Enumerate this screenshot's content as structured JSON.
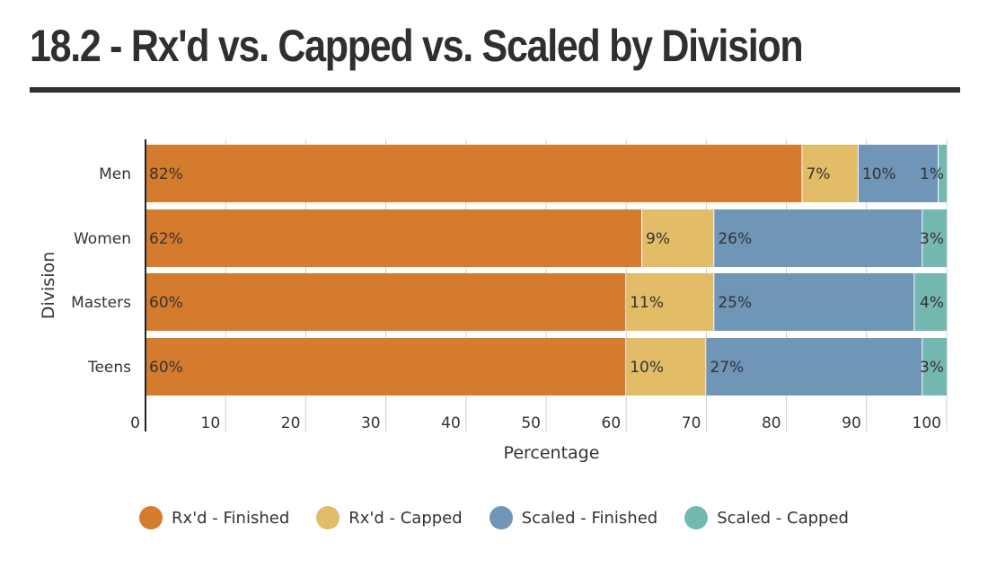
{
  "title": "18.2 - Rx'd vs. Capped vs. Scaled by Division",
  "chart_data": {
    "type": "bar",
    "orientation": "horizontal",
    "stacked": true,
    "title": "18.2 - Rx'd vs. Capped vs. Scaled by Division",
    "xlabel": "Percentage",
    "ylabel": "Division",
    "xlim": [
      0,
      100
    ],
    "xticks": [
      0,
      10,
      20,
      30,
      40,
      50,
      60,
      70,
      80,
      90,
      100
    ],
    "grid": true,
    "legend_position": "bottom",
    "categories": [
      "Men",
      "Women",
      "Masters",
      "Teens"
    ],
    "series": [
      {
        "name": "Rx'd - Finished",
        "color": "#d57b2d",
        "values": [
          82,
          62,
          60,
          60
        ],
        "labels": [
          "82%",
          "62%",
          "60%",
          "60%"
        ]
      },
      {
        "name": "Rx'd - Capped",
        "color": "#e2bc67",
        "values": [
          7,
          9,
          11,
          10
        ],
        "labels": [
          "7%",
          "9%",
          "11%",
          "10%"
        ]
      },
      {
        "name": "Scaled - Finished",
        "color": "#6f95b7",
        "values": [
          10,
          26,
          25,
          27
        ],
        "labels": [
          "10%",
          "26%",
          "25%",
          "27%"
        ]
      },
      {
        "name": "Scaled - Capped",
        "color": "#74b9b1",
        "values": [
          1,
          3,
          4,
          3
        ],
        "labels": [
          "1%",
          "3%",
          "4%",
          "3%"
        ]
      }
    ]
  }
}
